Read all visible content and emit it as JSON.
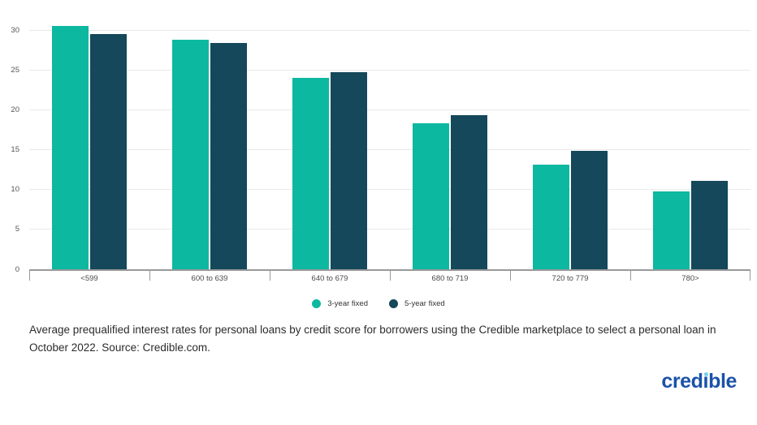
{
  "chart_data": {
    "type": "bar",
    "title": "",
    "categories": [
      "<599",
      "600 to 639",
      "640 to 679",
      "680 to 719",
      "720 to 779",
      "780>"
    ],
    "series": [
      {
        "name": "3-year fixed",
        "color": "#0db8a0",
        "values": [
          30.6,
          28.9,
          24.1,
          18.4,
          13.2,
          9.8
        ]
      },
      {
        "name": "5-year fixed",
        "color": "#14485a",
        "values": [
          29.6,
          28.5,
          24.8,
          19.4,
          14.9,
          11.1
        ]
      }
    ],
    "xlabel": "",
    "ylabel": "",
    "yticks": [
      0,
      5,
      10,
      15,
      20,
      25,
      30
    ],
    "ylim": [
      0,
      31
    ],
    "grid": true,
    "legend_position": "bottom"
  },
  "caption": "Average prequalified interest rates for personal loans by credit score for borrowers using the Credible marketplace to select a personal loan in October 2022. Source: Credible.com.",
  "logo": {
    "part1": "cred",
    "part2": "i",
    "part3": "ble"
  },
  "colors": {
    "grid": "#e9e9e9",
    "axis": "#9a9a9a",
    "tick_text": "#555555",
    "caption_text": "#2b2b2b",
    "logo_blue": "#1b52a8",
    "logo_dot": "#7ed0e6"
  }
}
